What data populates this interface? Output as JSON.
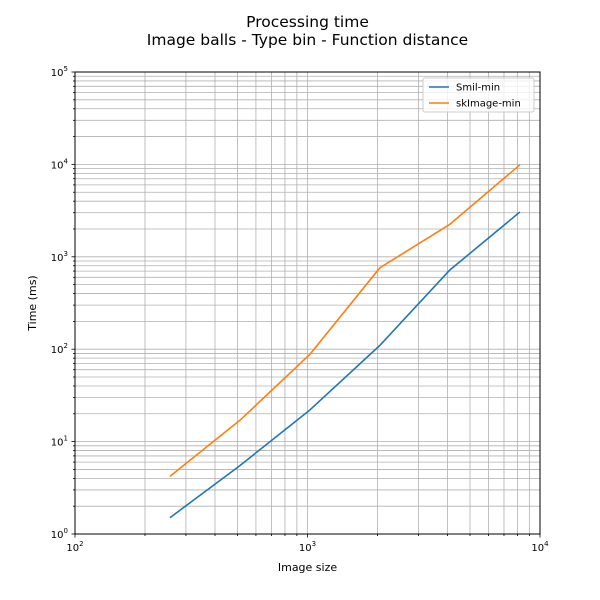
{
  "chart_data": {
    "type": "line",
    "title": "Processing time",
    "subtitle": "Image balls - Type bin - Function distance",
    "xlabel": "Image size",
    "ylabel": "Time (ms)",
    "xscale": "log",
    "yscale": "log",
    "xlim": [
      100,
      10000
    ],
    "ylim": [
      1,
      100000
    ],
    "grid": true,
    "legend_position": "top-right",
    "x_tick_labels": [
      {
        "base": "10",
        "exp": "2",
        "value": 100
      },
      {
        "base": "10",
        "exp": "3",
        "value": 1000
      },
      {
        "base": "10",
        "exp": "4",
        "value": 10000
      }
    ],
    "y_tick_labels": [
      {
        "base": "10",
        "exp": "0",
        "value": 1
      },
      {
        "base": "10",
        "exp": "1",
        "value": 10
      },
      {
        "base": "10",
        "exp": "2",
        "value": 100
      },
      {
        "base": "10",
        "exp": "3",
        "value": 1000
      },
      {
        "base": "10",
        "exp": "4",
        "value": 10000
      },
      {
        "base": "10",
        "exp": "5",
        "value": 100000
      }
    ],
    "series": [
      {
        "name": "Smil-min",
        "color": "#1f77b4",
        "x": [
          256,
          512,
          1024,
          2048,
          4096,
          8192
        ],
        "y": [
          1.5,
          5.5,
          22,
          110,
          720,
          3050
        ]
      },
      {
        "name": "skImage-min",
        "color": "#ff7f0e",
        "x": [
          256,
          512,
          1024,
          2048,
          4096,
          8192
        ],
        "y": [
          4.2,
          17,
          88,
          760,
          2250,
          9900
        ]
      }
    ]
  }
}
